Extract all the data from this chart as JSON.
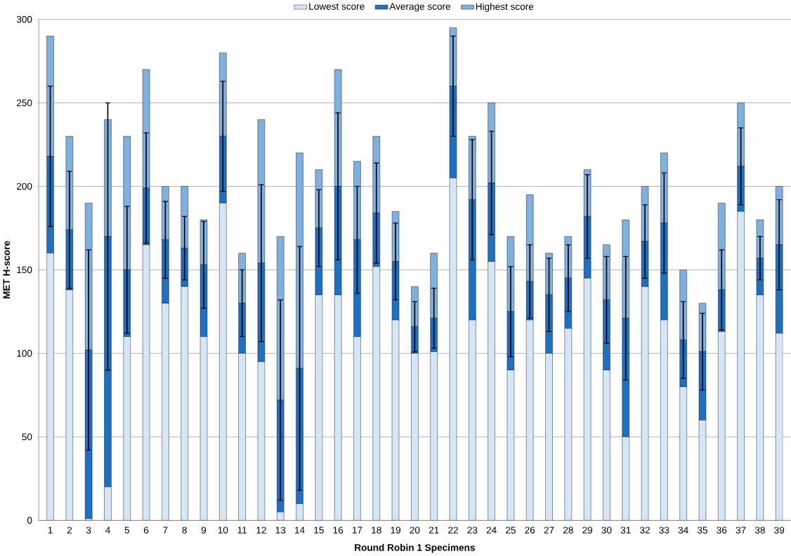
{
  "chart_data": {
    "type": "bar",
    "stacked": true,
    "xlabel": "Round Robin 1 Specimens",
    "ylabel": "MET H-score",
    "categories": [
      "1",
      "2",
      "3",
      "4",
      "5",
      "6",
      "7",
      "8",
      "9",
      "10",
      "11",
      "12",
      "13",
      "14",
      "15",
      "16",
      "17",
      "18",
      "19",
      "20",
      "21",
      "22",
      "23",
      "24",
      "25",
      "26",
      "27",
      "28",
      "29",
      "30",
      "31",
      "32",
      "33",
      "34",
      "35",
      "36",
      "37",
      "38",
      "39"
    ],
    "series": [
      {
        "name": "Lowest score",
        "color": "#d6e6f7",
        "values": [
          160,
          138,
          1,
          20,
          110,
          165,
          130,
          140,
          110,
          190,
          100,
          95,
          5,
          10,
          135,
          135,
          110,
          152,
          120,
          100,
          101,
          205,
          120,
          155,
          90,
          120,
          100,
          115,
          145,
          90,
          50,
          140,
          120,
          80,
          60,
          113,
          185,
          135,
          112
        ]
      },
      {
        "name": "Average score",
        "color": "#1f70c1",
        "values": [
          58,
          36,
          101,
          150,
          40,
          34,
          38,
          23,
          43,
          40,
          30,
          59,
          67,
          81,
          40,
          65,
          58,
          32,
          35,
          16,
          20,
          55,
          72,
          47,
          35,
          23,
          35,
          30,
          37,
          42,
          71,
          27,
          58,
          28,
          41,
          25,
          27,
          22,
          53
        ],
        "errors": [
          42,
          35,
          60,
          80,
          38,
          33,
          23,
          19,
          26,
          33,
          20,
          47,
          60,
          73,
          23,
          44,
          32,
          30,
          23,
          15,
          18,
          30,
          36,
          31,
          27,
          22,
          22,
          20,
          25,
          26,
          37,
          22,
          30,
          23,
          23,
          24,
          23,
          13,
          27
        ]
      },
      {
        "name": "Highest score",
        "color": "#7fb0e0",
        "values": [
          72,
          56,
          88,
          70,
          80,
          71,
          32,
          37,
          27,
          50,
          30,
          86,
          98,
          129,
          35,
          70,
          47,
          46,
          30,
          24,
          39,
          35,
          38,
          48,
          45,
          52,
          25,
          25,
          28,
          33,
          59,
          33,
          42,
          42,
          29,
          52,
          38,
          23,
          35
        ]
      }
    ],
    "ylim": [
      0,
      300
    ],
    "yticks": [
      0,
      50,
      100,
      150,
      200,
      250,
      300
    ],
    "grid": "y",
    "legend": "top"
  }
}
